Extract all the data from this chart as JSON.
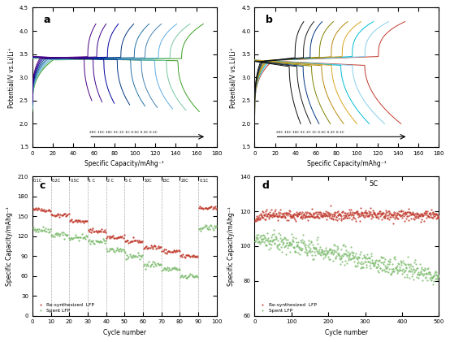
{
  "panel_a": {
    "ylabel": "Potential/V vs.Li/Li⁺",
    "xlabel": "Specific Capacity/mAhg⁻¹",
    "xlim": [
      0,
      180
    ],
    "ylim": [
      1.5,
      4.5
    ],
    "yticks": [
      1.5,
      2.0,
      2.5,
      3.0,
      3.5,
      4.0,
      4.5
    ],
    "xticks": [
      0,
      20,
      40,
      60,
      80,
      100,
      120,
      140,
      160,
      180
    ],
    "c_rates": [
      20,
      15,
      10,
      5,
      2,
      1,
      0.5,
      0.2,
      0.1
    ],
    "max_caps_discharge": [
      58,
      68,
      80,
      95,
      110,
      122,
      137,
      150,
      163
    ],
    "max_caps_charge": [
      62,
      72,
      84,
      99,
      114,
      126,
      141,
      154,
      167
    ],
    "colors": [
      "#4b0082",
      "#3d3d8c",
      "#003580",
      "#1a5276",
      "#2471a3",
      "#5499c9",
      "#5dade2",
      "#85c1e9",
      "#a8d5a2",
      "#52be80"
    ],
    "label": "a"
  },
  "panel_b": {
    "ylabel": "Potential/V vs.Li/Li⁺",
    "xlabel": "Specific Capacity/mAhg⁻¹",
    "xlim": [
      0,
      180
    ],
    "ylim": [
      1.5,
      4.5
    ],
    "yticks": [
      1.5,
      2.0,
      2.5,
      3.0,
      3.5,
      4.0,
      4.5
    ],
    "xticks": [
      0,
      20,
      40,
      60,
      80,
      100,
      120,
      140,
      160,
      180
    ],
    "c_rates": [
      20,
      15,
      10,
      5,
      2,
      1,
      0.5,
      0.2,
      0.1
    ],
    "max_caps_discharge": [
      45,
      55,
      63,
      74,
      87,
      100,
      112,
      127,
      143
    ],
    "max_caps_charge": [
      48,
      58,
      66,
      77,
      91,
      104,
      116,
      131,
      147
    ],
    "colors": [
      "#1a1a1a",
      "#2d2d2d",
      "#1c4587",
      "#0b5394",
      "#38761d",
      "#93c47d",
      "#00ffff",
      "#4fc3f7",
      "#c0392b",
      "#e74c3c"
    ],
    "label": "b"
  },
  "panel_c": {
    "ylabel": "Specific Capacity/mAhg⁻¹",
    "xlabel": "Cycle number",
    "xlim": [
      0,
      100
    ],
    "ylim": [
      0,
      210
    ],
    "yticks": [
      0,
      30,
      60,
      90,
      120,
      150,
      180,
      210
    ],
    "xticks": [
      0,
      10,
      20,
      30,
      40,
      50,
      60,
      70,
      80,
      90,
      100
    ],
    "vlines": [
      10,
      20,
      30,
      40,
      50,
      60,
      70,
      80,
      90
    ],
    "rate_labels": [
      "0.1C",
      "0.2C",
      "0.5C",
      "1 C",
      "2 C",
      "5 C",
      "10C",
      "15C",
      "20C",
      "0.1C"
    ],
    "rate_x": [
      0.5,
      10.5,
      20.5,
      30.5,
      40.5,
      50.5,
      60.5,
      70.5,
      80.5,
      90.5
    ],
    "rate_y": 207,
    "re_levels": [
      160,
      152,
      143,
      128,
      118,
      112,
      103,
      97,
      90,
      162
    ],
    "sp_levels": [
      130,
      122,
      118,
      112,
      100,
      90,
      78,
      70,
      60,
      133
    ],
    "color_re": "#c0392b",
    "color_spent": "#7dbb6e",
    "legend_re": "Re-synthesized  LFP",
    "legend_spent": "Spent LFP",
    "label": "c"
  },
  "panel_d": {
    "ylabel": "Specific Capacity/mAhg⁻¹",
    "xlabel": "Cycle number",
    "xlim": [
      0,
      500
    ],
    "ylim": [
      60,
      140
    ],
    "yticks": [
      60,
      80,
      100,
      120,
      140
    ],
    "xticks": [
      0,
      100,
      200,
      300,
      400,
      500
    ],
    "rate_label": "5C",
    "re_start": 118,
    "re_end": 118,
    "sp_start": 105,
    "sp_end": 83,
    "color_re": "#c0392b",
    "color_spent": "#7dbb6e",
    "legend_re": "Re-synthesized  LFP",
    "legend_spent": "Spent LFP",
    "label": "d"
  }
}
